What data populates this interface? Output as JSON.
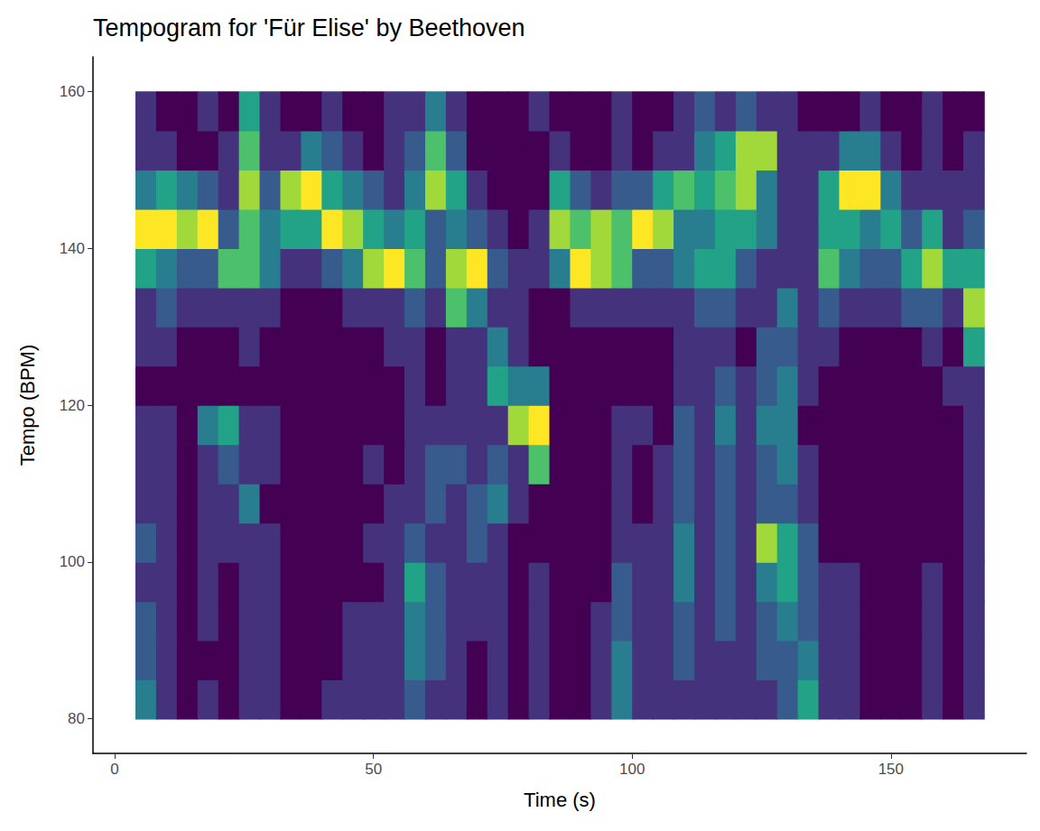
{
  "chart_data": {
    "type": "heatmap",
    "title": "Tempogram for 'Für Elise' by Beethoven",
    "xlabel": "Time (s)",
    "ylabel": "Tempo (BPM)",
    "xlim": [
      -4.2,
      176.2
    ],
    "ylim": [
      75.6,
      164.4
    ],
    "xticks": [
      0,
      50,
      100,
      150
    ],
    "yticks": [
      80,
      100,
      120,
      140,
      160
    ],
    "x": [
      6,
      10,
      14,
      18,
      22,
      26,
      30,
      34,
      38,
      42,
      46,
      50,
      54,
      58,
      62,
      66,
      70,
      74,
      78,
      82,
      86,
      90,
      94,
      98,
      102,
      106,
      110,
      114,
      118,
      122,
      126,
      130,
      134,
      138,
      142,
      146,
      150,
      154,
      158,
      162,
      166
    ],
    "y": [
      82.5,
      87.5,
      92.5,
      97.5,
      102.5,
      107.5,
      112.5,
      117.5,
      122.5,
      127.5,
      132.5,
      137.5,
      142.5,
      147.5,
      152.5,
      157.5
    ],
    "values": [
      [
        5,
        3,
        2,
        3,
        2,
        3,
        3,
        2,
        2,
        3,
        3,
        3,
        3,
        4,
        3,
        3,
        2,
        3,
        2,
        3,
        2,
        2,
        3,
        5,
        3,
        3,
        3,
        3,
        3,
        3,
        3,
        4,
        6,
        3,
        3,
        2,
        2,
        2,
        3,
        2,
        3
      ],
      [
        4,
        3,
        2,
        2,
        2,
        3,
        3,
        2,
        2,
        2,
        3,
        3,
        3,
        5,
        4,
        3,
        2,
        3,
        2,
        3,
        2,
        2,
        3,
        5,
        3,
        3,
        4,
        3,
        3,
        3,
        4,
        4,
        5,
        3,
        3,
        2,
        2,
        2,
        3,
        2,
        3
      ],
      [
        4,
        3,
        2,
        3,
        2,
        3,
        3,
        2,
        2,
        2,
        3,
        3,
        3,
        5,
        4,
        3,
        3,
        3,
        2,
        3,
        2,
        2,
        3,
        4,
        3,
        3,
        4,
        3,
        4,
        3,
        4,
        5,
        4,
        3,
        3,
        2,
        2,
        2,
        3,
        2,
        3
      ],
      [
        3,
        3,
        2,
        3,
        2,
        3,
        3,
        2,
        2,
        2,
        2,
        2,
        3,
        6,
        4,
        3,
        3,
        3,
        2,
        3,
        2,
        2,
        2,
        4,
        3,
        3,
        5,
        3,
        4,
        3,
        5,
        6,
        4,
        3,
        3,
        2,
        2,
        2,
        3,
        2,
        3
      ],
      [
        4,
        3,
        2,
        3,
        3,
        3,
        3,
        2,
        2,
        2,
        2,
        3,
        3,
        4,
        3,
        3,
        4,
        3,
        2,
        2,
        2,
        2,
        2,
        3,
        3,
        3,
        5,
        3,
        4,
        3,
        8,
        6,
        4,
        2,
        2,
        2,
        2,
        2,
        2,
        2,
        3
      ],
      [
        3,
        3,
        2,
        3,
        3,
        5,
        2,
        2,
        2,
        2,
        2,
        2,
        3,
        3,
        4,
        3,
        4,
        5,
        3,
        2,
        2,
        2,
        2,
        3,
        2,
        3,
        4,
        3,
        4,
        3,
        4,
        4,
        3,
        2,
        2,
        2,
        2,
        2,
        2,
        2,
        3
      ],
      [
        3,
        3,
        2,
        3,
        4,
        3,
        3,
        2,
        2,
        2,
        2,
        3,
        2,
        3,
        4,
        4,
        3,
        4,
        3,
        7,
        2,
        2,
        2,
        3,
        2,
        3,
        4,
        3,
        4,
        3,
        4,
        5,
        3,
        2,
        2,
        2,
        2,
        2,
        2,
        2,
        3
      ],
      [
        3,
        3,
        2,
        5,
        6,
        3,
        3,
        2,
        2,
        2,
        2,
        2,
        2,
        3,
        3,
        3,
        3,
        3,
        8,
        9,
        2,
        2,
        2,
        3,
        3,
        2,
        4,
        3,
        5,
        3,
        5,
        5,
        2,
        2,
        2,
        2,
        2,
        2,
        2,
        2,
        3
      ],
      [
        2,
        2,
        2,
        2,
        2,
        2,
        2,
        2,
        2,
        2,
        2,
        2,
        2,
        3,
        2,
        3,
        3,
        6,
        5,
        5,
        2,
        2,
        2,
        2,
        2,
        2,
        3,
        3,
        4,
        3,
        4,
        5,
        3,
        2,
        2,
        2,
        2,
        2,
        2,
        3,
        3
      ],
      [
        3,
        3,
        2,
        2,
        2,
        3,
        2,
        2,
        2,
        2,
        2,
        2,
        3,
        3,
        2,
        3,
        3,
        5,
        3,
        2,
        2,
        2,
        2,
        2,
        2,
        2,
        3,
        3,
        3,
        2,
        4,
        4,
        3,
        3,
        2,
        2,
        2,
        2,
        3,
        2,
        6
      ],
      [
        3,
        4,
        3,
        3,
        3,
        3,
        3,
        2,
        2,
        2,
        3,
        3,
        3,
        4,
        3,
        7,
        5,
        3,
        3,
        2,
        2,
        3,
        3,
        3,
        3,
        3,
        3,
        4,
        4,
        3,
        3,
        5,
        3,
        4,
        3,
        3,
        3,
        4,
        4,
        3,
        8
      ],
      [
        6,
        5,
        4,
        4,
        7,
        7,
        5,
        3,
        3,
        4,
        5,
        8,
        9,
        7,
        4,
        8,
        9,
        4,
        3,
        3,
        5,
        9,
        8,
        7,
        4,
        4,
        5,
        6,
        6,
        4,
        3,
        3,
        3,
        7,
        5,
        4,
        4,
        6,
        8,
        6,
        6
      ],
      [
        9,
        9,
        8,
        9,
        4,
        7,
        5,
        6,
        6,
        9,
        8,
        6,
        5,
        6,
        4,
        5,
        4,
        3,
        2,
        3,
        8,
        7,
        8,
        7,
        9,
        8,
        5,
        5,
        6,
        6,
        5,
        3,
        3,
        6,
        6,
        5,
        6,
        4,
        6,
        3,
        4
      ],
      [
        5,
        6,
        5,
        4,
        3,
        8,
        4,
        8,
        9,
        6,
        5,
        4,
        3,
        5,
        8,
        6,
        3,
        2,
        2,
        2,
        6,
        4,
        3,
        4,
        4,
        6,
        7,
        6,
        7,
        8,
        5,
        3,
        3,
        6,
        9,
        9,
        5,
        3,
        3,
        3,
        3
      ],
      [
        3,
        3,
        2,
        2,
        3,
        7,
        3,
        3,
        5,
        4,
        3,
        2,
        3,
        4,
        7,
        4,
        2,
        2,
        2,
        2,
        3,
        2,
        2,
        3,
        2,
        3,
        3,
        5,
        6,
        8,
        8,
        3,
        3,
        3,
        5,
        5,
        3,
        2,
        3,
        2,
        3
      ],
      [
        3,
        2,
        2,
        3,
        2,
        6,
        3,
        2,
        2,
        3,
        2,
        2,
        3,
        3,
        5,
        3,
        2,
        2,
        2,
        3,
        2,
        2,
        2,
        3,
        2,
        2,
        3,
        4,
        3,
        4,
        3,
        3,
        2,
        2,
        2,
        3,
        2,
        2,
        3,
        2,
        2
      ]
    ]
  }
}
